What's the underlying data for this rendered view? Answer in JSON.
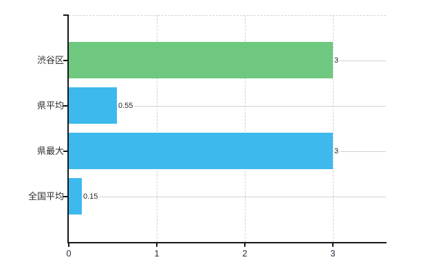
{
  "chart_data": {
    "type": "bar",
    "orientation": "horizontal",
    "title": "",
    "categories": [
      "渋谷区",
      "県平均",
      "県最大",
      "全国平均"
    ],
    "values": [
      3,
      0.55,
      3,
      0.15
    ],
    "value_labels": [
      "3",
      "0.55",
      "3",
      "0.15"
    ],
    "bar_colors": [
      "#6ec880",
      "#3db9ee",
      "#3db9ee",
      "#3db9ee"
    ],
    "xlim": [
      0,
      3.6
    ],
    "xticks": [
      0,
      1,
      2,
      3
    ],
    "xtick_labels": [
      "0",
      "1",
      "2",
      "3"
    ],
    "grid": true,
    "legend": false
  },
  "colors": {
    "bar_green": "#6ec880",
    "bar_blue": "#3db9ee",
    "axis": "#141414",
    "horizontal_gridline": "#ccd4cc",
    "vertical_gridline": "#d5cecf",
    "top_border": "#d2d2d2",
    "label_text": "#222222",
    "background": "#ffffff"
  }
}
